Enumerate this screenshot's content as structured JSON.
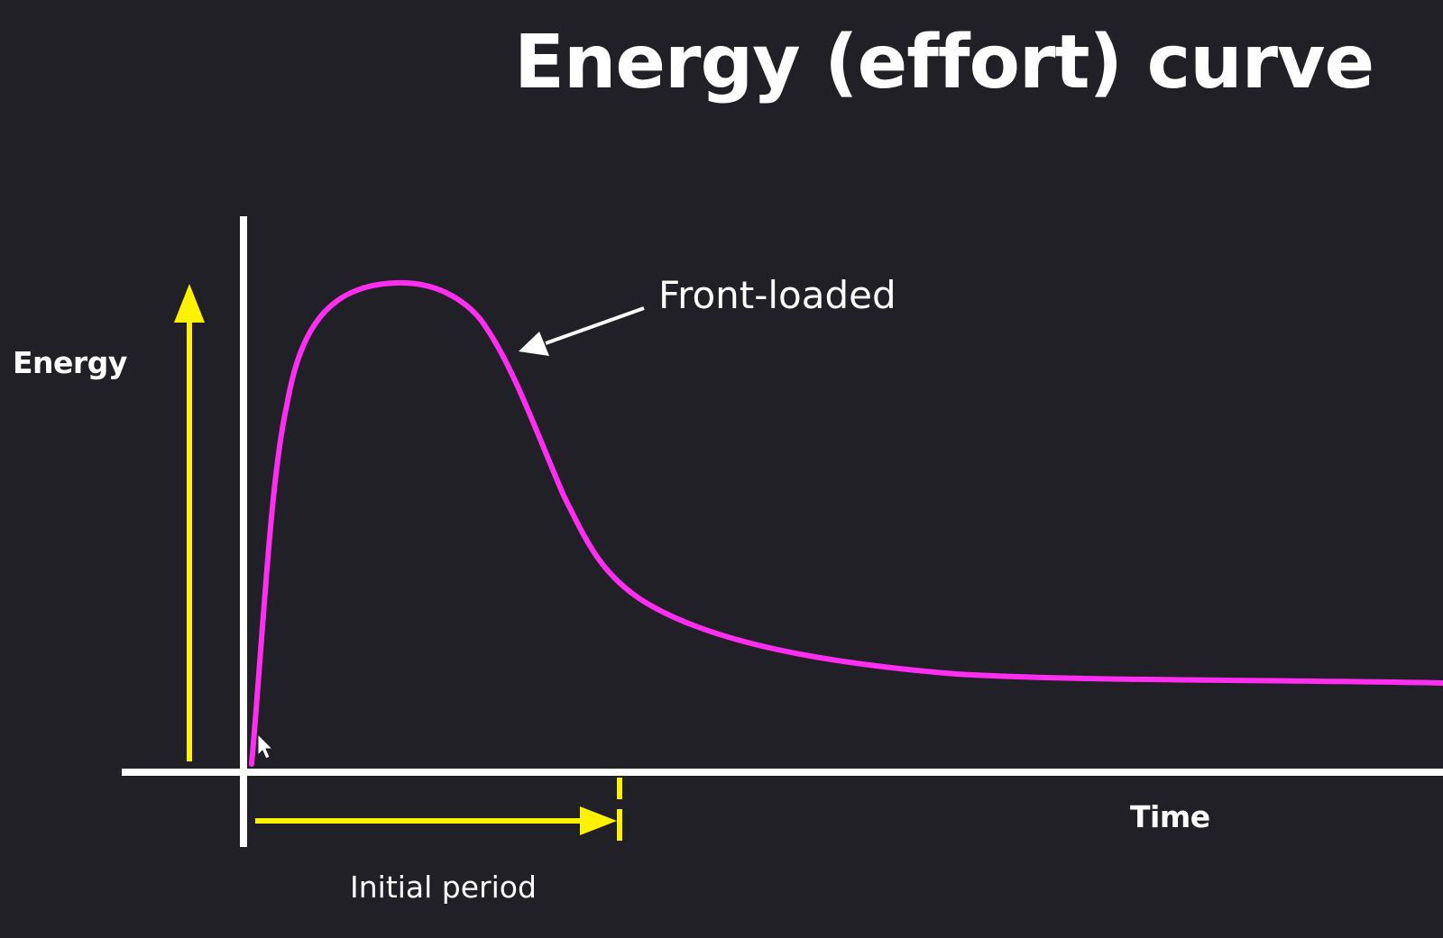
{
  "title": "Energy (effort) curve",
  "y_axis_label": "Energy",
  "x_axis_label": "Time",
  "curve_annotation": "Front-loaded",
  "period_label": "Initial period",
  "colors": {
    "background": "#202026",
    "axis": "#ffffff",
    "curve": "#ff2ef0",
    "indicator_arrows": "#fff200",
    "text": "#ffffff"
  },
  "icons": {
    "cursor": "mouse-pointer-icon"
  }
}
